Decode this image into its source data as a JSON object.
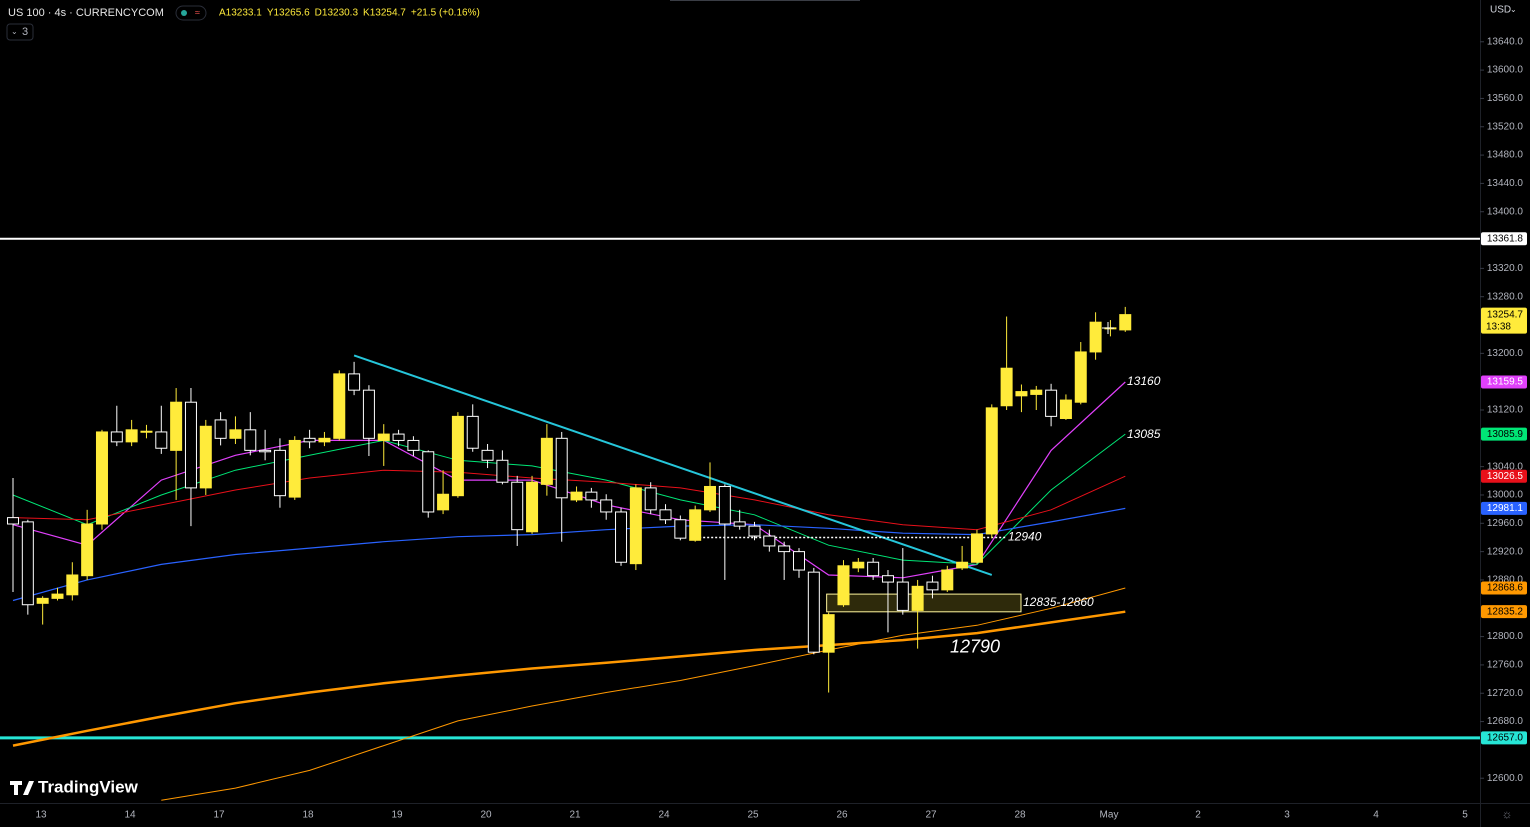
{
  "chart_data": {
    "type": "candlestick",
    "title": "US 100 · 4s · CURRENCYCOM",
    "ohlc_readout": [
      "A13233.1",
      "Y13265.6",
      "D13230.3",
      "K13254.7",
      "+21.5 (+0.16%)"
    ],
    "indicators_badge": "3",
    "currency": "USD",
    "countdown": "13:38",
    "watermark": "TradingView",
    "categories": [
      "13",
      "14",
      "17",
      "18",
      "19",
      "20",
      "21",
      "24",
      "25",
      "26",
      "27",
      "28",
      "May",
      "2",
      "3",
      "4",
      "5"
    ],
    "up_color": "#ffeb3b",
    "down_color": "#000000",
    "ylim": [
      12565,
      13699
    ],
    "yticks": [
      {
        "value": 13640,
        "label": "13640.0"
      },
      {
        "value": 13600,
        "label": "13600.0"
      },
      {
        "value": 13560,
        "label": "13560.0"
      },
      {
        "value": 13520,
        "label": "13520.0"
      },
      {
        "value": 13480,
        "label": "13480.0"
      },
      {
        "value": 13440,
        "label": "13440.0"
      },
      {
        "value": 13400,
        "label": "13400.0"
      },
      {
        "value": 13320,
        "label": "13320.0"
      },
      {
        "value": 13280,
        "label": "13280.0"
      },
      {
        "value": 13200,
        "label": "13200.0"
      },
      {
        "value": 13120,
        "label": "13120.0"
      },
      {
        "value": 13040,
        "label": "13040.0"
      },
      {
        "value": 13000,
        "label": "13000.0"
      },
      {
        "value": 12960,
        "label": "12960.0"
      },
      {
        "value": 12920,
        "label": "12920.0"
      },
      {
        "value": 12880,
        "label": "12880.0"
      },
      {
        "value": 12800,
        "label": "12800.0"
      },
      {
        "value": 12760,
        "label": "12760.0"
      },
      {
        "value": 12720,
        "label": "12720.0"
      },
      {
        "value": 12680,
        "label": "12680.0"
      },
      {
        "value": 12600,
        "label": "12600.0"
      }
    ],
    "candles": [
      {
        "open": 12968,
        "high": 13024,
        "low": 12863,
        "close": 12959
      },
      {
        "open": 12962,
        "high": 12965,
        "low": 12831,
        "close": 12845
      },
      {
        "open": 12847,
        "high": 12857,
        "low": 12817,
        "close": 12854
      },
      {
        "open": 12854,
        "high": 12869,
        "low": 12851,
        "close": 12860
      },
      {
        "open": 12859,
        "high": 12905,
        "low": 12851,
        "close": 12887
      },
      {
        "open": 12886,
        "high": 12979,
        "low": 12880,
        "close": 12959
      },
      {
        "open": 12959,
        "high": 13092,
        "low": 12951,
        "close": 13089
      },
      {
        "open": 13089,
        "high": 13126,
        "low": 13069,
        "close": 13075
      },
      {
        "open": 13075,
        "high": 13106,
        "low": 13069,
        "close": 13092
      },
      {
        "open": 13089,
        "high": 13099,
        "low": 13080,
        "close": 13090
      },
      {
        "open": 13089,
        "high": 13126,
        "low": 13058,
        "close": 13066
      },
      {
        "open": 13063,
        "high": 13151,
        "low": 12993,
        "close": 13131
      },
      {
        "open": 13131,
        "high": 13151,
        "low": 12956,
        "close": 13010
      },
      {
        "open": 13010,
        "high": 13106,
        "low": 13000,
        "close": 13097
      },
      {
        "open": 13106,
        "high": 13117,
        "low": 13070,
        "close": 13080
      },
      {
        "open": 13080,
        "high": 13111,
        "low": 13072,
        "close": 13092
      },
      {
        "open": 13092,
        "high": 13117,
        "low": 13056,
        "close": 13063
      },
      {
        "open": 13063,
        "high": 13092,
        "low": 13049,
        "close": 13061
      },
      {
        "open": 13063,
        "high": 13080,
        "low": 12982,
        "close": 12999
      },
      {
        "open": 12997,
        "high": 13083,
        "low": 12993,
        "close": 13077
      },
      {
        "open": 13080,
        "high": 13092,
        "low": 13066,
        "close": 13075
      },
      {
        "open": 13075,
        "high": 13089,
        "low": 13069,
        "close": 13080
      },
      {
        "open": 13080,
        "high": 13176,
        "low": 13077,
        "close": 13171
      },
      {
        "open": 13171,
        "high": 13188,
        "low": 13141,
        "close": 13148
      },
      {
        "open": 13148,
        "high": 13155,
        "low": 13055,
        "close": 13080
      },
      {
        "open": 13077,
        "high": 13100,
        "low": 13041,
        "close": 13086
      },
      {
        "open": 13086,
        "high": 13092,
        "low": 13069,
        "close": 13077
      },
      {
        "open": 13077,
        "high": 13083,
        "low": 13055,
        "close": 13063
      },
      {
        "open": 13061,
        "high": 13063,
        "low": 12968,
        "close": 12976
      },
      {
        "open": 12979,
        "high": 13035,
        "low": 12973,
        "close": 13001
      },
      {
        "open": 12999,
        "high": 13117,
        "low": 12996,
        "close": 13111
      },
      {
        "open": 13111,
        "high": 13128,
        "low": 13061,
        "close": 13066
      },
      {
        "open": 13063,
        "high": 13072,
        "low": 13038,
        "close": 13049
      },
      {
        "open": 13049,
        "high": 13063,
        "low": 13015,
        "close": 13018
      },
      {
        "open": 13018,
        "high": 13027,
        "low": 12928,
        "close": 12951
      },
      {
        "open": 12948,
        "high": 13027,
        "low": 12945,
        "close": 13018
      },
      {
        "open": 13015,
        "high": 13100,
        "low": 12999,
        "close": 13080
      },
      {
        "open": 13080,
        "high": 13089,
        "low": 12934,
        "close": 12996
      },
      {
        "open": 12993,
        "high": 13012,
        "low": 12990,
        "close": 13004
      },
      {
        "open": 13004,
        "high": 13010,
        "low": 12982,
        "close": 12993
      },
      {
        "open": 12993,
        "high": 13001,
        "low": 12965,
        "close": 12976
      },
      {
        "open": 12976,
        "high": 12982,
        "low": 12900,
        "close": 12905
      },
      {
        "open": 12903,
        "high": 13015,
        "low": 12894,
        "close": 13010
      },
      {
        "open": 13010,
        "high": 13018,
        "low": 12973,
        "close": 12979
      },
      {
        "open": 12979,
        "high": 12987,
        "low": 12959,
        "close": 12965
      },
      {
        "open": 12965,
        "high": 12971,
        "low": 12936,
        "close": 12939
      },
      {
        "open": 12936,
        "high": 12985,
        "low": 12934,
        "close": 12979
      },
      {
        "open": 12979,
        "high": 13046,
        "low": 12976,
        "close": 13012
      },
      {
        "open": 13012,
        "high": 13015,
        "low": 12880,
        "close": 12959
      },
      {
        "open": 12962,
        "high": 12979,
        "low": 12951,
        "close": 12956
      },
      {
        "open": 12956,
        "high": 12962,
        "low": 12936,
        "close": 12942
      },
      {
        "open": 12942,
        "high": 12951,
        "low": 12920,
        "close": 12928
      },
      {
        "open": 12928,
        "high": 12934,
        "low": 12880,
        "close": 12920
      },
      {
        "open": 12920,
        "high": 12925,
        "low": 12883,
        "close": 12894
      },
      {
        "open": 12891,
        "high": 12897,
        "low": 12775,
        "close": 12778
      },
      {
        "open": 12778,
        "high": 12834,
        "low": 12721,
        "close": 12831
      },
      {
        "open": 12845,
        "high": 12908,
        "low": 12842,
        "close": 12900
      },
      {
        "open": 12897,
        "high": 12911,
        "low": 12891,
        "close": 12905
      },
      {
        "open": 12905,
        "high": 12911,
        "low": 12880,
        "close": 12886
      },
      {
        "open": 12886,
        "high": 12894,
        "low": 12806,
        "close": 12877
      },
      {
        "open": 12877,
        "high": 12925,
        "low": 12831,
        "close": 12837
      },
      {
        "open": 12837,
        "high": 12880,
        "low": 12783,
        "close": 12871
      },
      {
        "open": 12877,
        "high": 12886,
        "low": 12854,
        "close": 12866
      },
      {
        "open": 12866,
        "high": 12900,
        "low": 12863,
        "close": 12894
      },
      {
        "open": 12897,
        "high": 12928,
        "low": 12894,
        "close": 12905
      },
      {
        "open": 12905,
        "high": 12951,
        "low": 12903,
        "close": 12945
      },
      {
        "open": 12945,
        "high": 13128,
        "low": 12939,
        "close": 13123
      },
      {
        "open": 13126,
        "high": 13252,
        "low": 13120,
        "close": 13179
      },
      {
        "open": 13140,
        "high": 13156,
        "low": 13117,
        "close": 13146
      },
      {
        "open": 13142,
        "high": 13154,
        "low": 13120,
        "close": 13148
      },
      {
        "open": 13148,
        "high": 13157,
        "low": 13097,
        "close": 13111
      },
      {
        "open": 13108,
        "high": 13142,
        "low": 13106,
        "close": 13134
      },
      {
        "open": 13131,
        "high": 13216,
        "low": 13128,
        "close": 13202
      },
      {
        "open": 13202,
        "high": 13258,
        "low": 13191,
        "close": 13244
      },
      {
        "open": 13235,
        "high": 13247,
        "low": 13224,
        "close": 13236
      },
      {
        "open": 13233.1,
        "high": 13265.6,
        "low": 13230.3,
        "close": 13254.7
      }
    ],
    "moving_averages": [
      {
        "color": "#e040fb",
        "width": 1.2,
        "badge_text": "#ffffff",
        "values": [
          12958,
          12929,
          13021,
          13056,
          13077,
          13077,
          13021,
          13021,
          12986,
          12965,
          12958,
          12887,
          12883,
          12902,
          13063,
          13159.5
        ]
      },
      {
        "color": "#00e676",
        "width": 1,
        "badge_text": "#000000",
        "values": [
          13000,
          12958,
          13000,
          13035,
          13056,
          13077,
          13049,
          13041,
          13021,
          12993,
          12972,
          12929,
          12908,
          12902,
          13007,
          13085.9
        ]
      },
      {
        "color": "#e8101a",
        "width": 1,
        "badge_text": "#ffffff",
        "values": [
          12968,
          12965,
          12986,
          13007,
          13024,
          13035,
          13032,
          13024,
          13018,
          13010,
          12993,
          12972,
          12958,
          12951,
          12979,
          13026.5
        ]
      },
      {
        "color": "#2962ff",
        "width": 1.2,
        "badge_text": "#ffffff",
        "values": [
          12851,
          12880,
          12902,
          12916,
          12925,
          12934,
          12941,
          12944,
          12951,
          12956,
          12958,
          12953,
          12946,
          12944,
          12962,
          12981.1
        ]
      },
      {
        "color": "#ff9800",
        "width": 1,
        "badge_text": "#000000",
        "values": [
          null,
          null,
          12569,
          12586,
          12611,
          12646,
          12681,
          12702,
          12721,
          12738,
          12759,
          12781,
          12802,
          12816,
          12840,
          12868.6
        ]
      },
      {
        "color": "#ff9800",
        "width": 2.5,
        "badge_text": "#000000",
        "values": [
          12646,
          12667,
          12687,
          12706,
          12721,
          12734,
          12745,
          12755,
          12763,
          12772,
          12781,
          12788,
          12795,
          12805,
          12820,
          12835.2
        ]
      }
    ],
    "levels": [
      {
        "value": 13361.8,
        "color": "#ffffff",
        "width": 2
      },
      {
        "value": {
          "value": 12657,
          "label": "12657.0"
        },
        "color": "#26e6d6",
        "width": 3
      }
    ],
    "trendline": {
      "values": [
        13197,
        12887
      ],
      "color": "#26c6da"
    },
    "annotations": [
      13160,
      13085,
      12940,
      12790
    ],
    "zone": {
      "low": 12835,
      "high": 12860,
      "label": "12835-12860"
    }
  }
}
